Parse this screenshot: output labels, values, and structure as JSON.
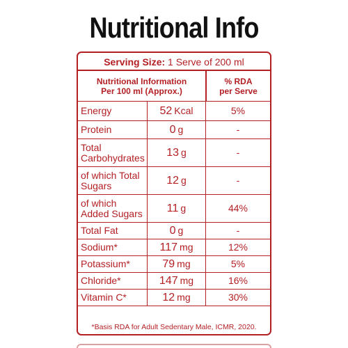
{
  "title": "Nutritional Info",
  "serving": {
    "label": "Serving Size:",
    "value": "1 Serve of 200 ml"
  },
  "header": {
    "col1_line1": "Nutritional Information",
    "col1_line2": "Per 100 ml (Approx.)",
    "col3_line1": "% RDA",
    "col3_line2": "per Serve"
  },
  "rows": [
    {
      "name": "Energy",
      "amount": "52",
      "unit": "Kcal",
      "rda": "5%"
    },
    {
      "name": "Protein",
      "amount": "0",
      "unit": "g",
      "rda": "-"
    },
    {
      "name": "Total Carbohydrates",
      "amount": "13",
      "unit": "g",
      "rda": "-"
    },
    {
      "name": "of which Total Sugars",
      "amount": "12",
      "unit": "g",
      "rda": "-"
    },
    {
      "name": "of which Added Sugars",
      "amount": "11",
      "unit": "g",
      "rda": "44%"
    },
    {
      "name": "Total Fat",
      "amount": "0",
      "unit": "g",
      "rda": "-"
    },
    {
      "name": "Sodium*",
      "amount": "117",
      "unit": "mg",
      "rda": "12%"
    },
    {
      "name": "Potassium*",
      "amount": "79",
      "unit": "mg",
      "rda": "5%"
    },
    {
      "name": "Chloride*",
      "amount": "147",
      "unit": "mg",
      "rda": "16%"
    },
    {
      "name": "Vitamin C*",
      "amount": "12",
      "unit": "mg",
      "rda": "30%"
    }
  ],
  "footnote": "*Basis RDA for Adult Sedentary Male, ICMR, 2020.",
  "colors": {
    "accent": "#b41f24",
    "title": "#111111"
  }
}
